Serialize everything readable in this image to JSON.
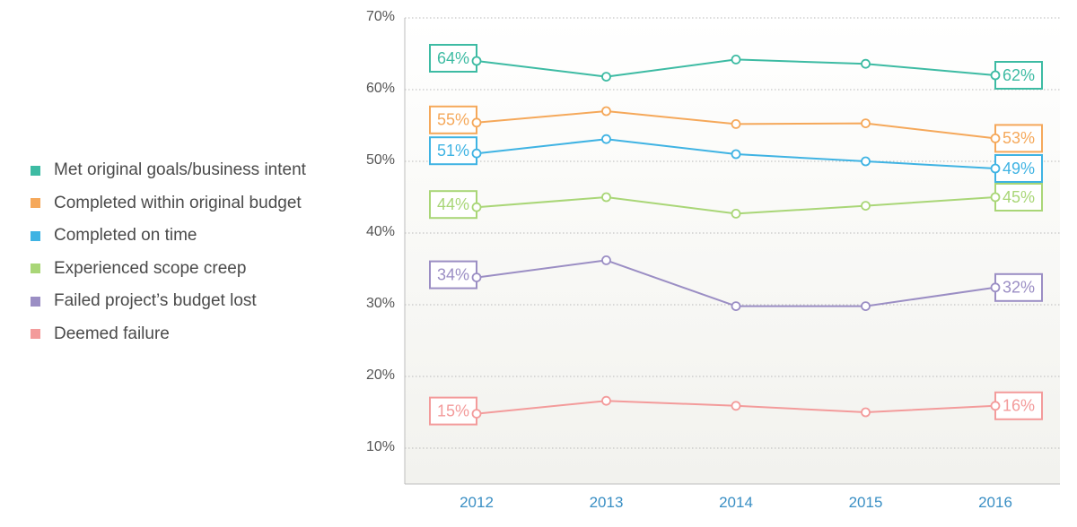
{
  "chart_data": {
    "type": "line",
    "x": [
      "2012",
      "2013",
      "2014",
      "2015",
      "2016"
    ],
    "ylim": [
      5,
      70
    ],
    "yticks": [
      10,
      20,
      30,
      40,
      50,
      60,
      70
    ],
    "ytick_labels": [
      "10%",
      "20%",
      "30%",
      "40%",
      "50%",
      "60%",
      "70%"
    ],
    "grid": true,
    "legend_position": "left",
    "series": [
      {
        "name": "Met original goals/business intent",
        "color": "#3dbba3",
        "values": [
          64,
          61.8,
          64.2,
          63.6,
          62
        ],
        "start_label": "64%",
        "end_label": "62%"
      },
      {
        "name": "Completed within original budget",
        "color": "#f5a85a",
        "values": [
          55.4,
          57,
          55.2,
          55.3,
          53.2
        ],
        "start_label": "55%",
        "end_label": "53%"
      },
      {
        "name": "Completed on time",
        "color": "#3fb3e3",
        "values": [
          51.1,
          53.1,
          51,
          50,
          49
        ],
        "start_label": "51%",
        "end_label": "49%"
      },
      {
        "name": "Experienced scope creep",
        "color": "#a9d677",
        "values": [
          43.6,
          45,
          42.7,
          43.8,
          45
        ],
        "start_label": "44%",
        "end_label": "45%"
      },
      {
        "name": "Failed project’s budget lost",
        "color": "#9b8ec4",
        "values": [
          33.8,
          36.2,
          29.8,
          29.8,
          32.4
        ],
        "start_label": "34%",
        "end_label": "32%"
      },
      {
        "name": "Deemed failure",
        "color": "#f39b9b",
        "values": [
          14.8,
          16.6,
          15.9,
          15,
          15.9
        ],
        "start_label": "15%",
        "end_label": "16%"
      }
    ]
  }
}
